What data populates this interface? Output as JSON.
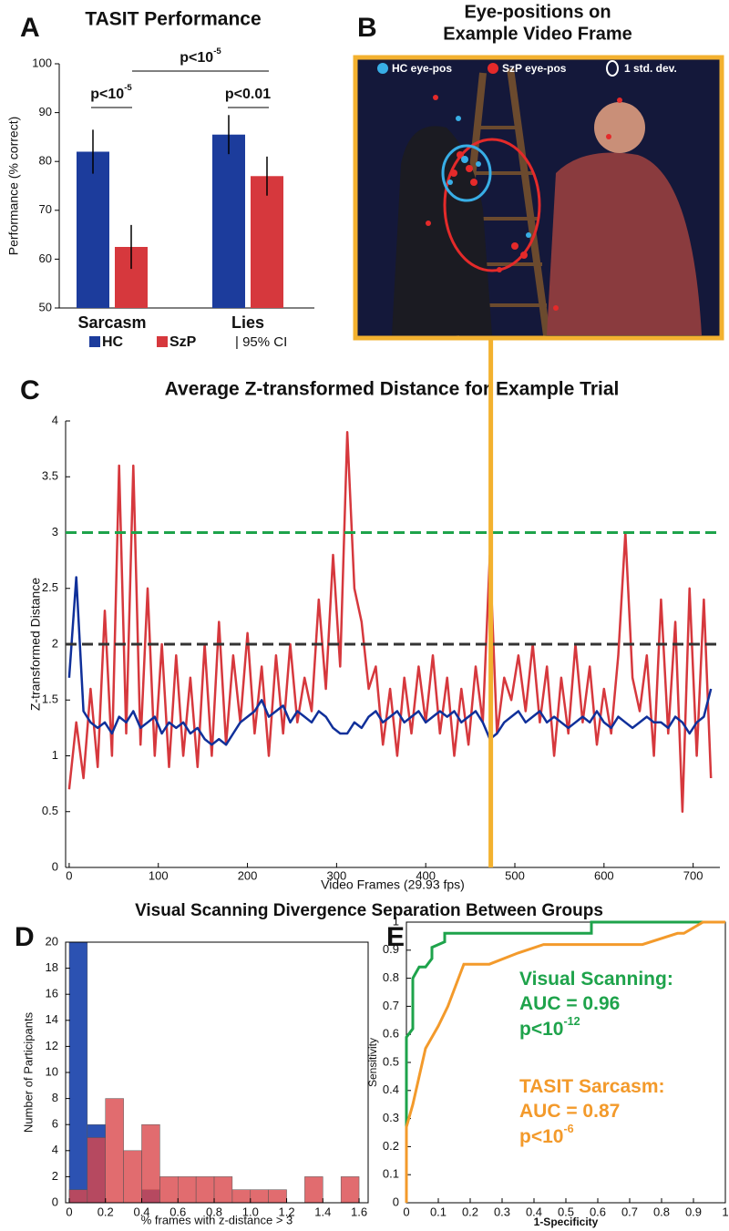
{
  "panel_labels": [
    "A",
    "B",
    "C",
    "D",
    "E"
  ],
  "image_panel": {
    "title": [
      "Eye-positions on",
      "Example Video Frame"
    ],
    "legend": [
      "HC eye-pos",
      "SzP eye-pos",
      "1 std. dev."
    ]
  },
  "chart_data": [
    {
      "type": "bar",
      "title": "TASIT Performance",
      "y_label": "Performance (% correct)",
      "categories": [
        "Sarcasm",
        "Lies"
      ],
      "series": [
        {
          "name": "HC",
          "color": "#1c3c9c",
          "values": [
            82,
            85.5
          ],
          "errors": [
            4.5,
            4
          ]
        },
        {
          "name": "SzP",
          "color": "#d6383d",
          "values": [
            62.5,
            77
          ],
          "errors": [
            4.5,
            4
          ]
        }
      ],
      "error_bar_label": "| 95% CI",
      "ylim": [
        50,
        100
      ],
      "yticks": [
        50,
        60,
        70,
        80,
        90,
        100
      ],
      "annotations": [
        {
          "text": "p<10",
          "sup": "-5"
        },
        {
          "text": "p<10",
          "sup": "-5"
        },
        {
          "text": "p<0.01"
        }
      ]
    },
    {
      "type": "line",
      "title": "Average Z-transformed Distance for Example Trial",
      "x_label": "Video Frames (29.93 fps)",
      "y_label": "Z-transformed Distance",
      "x": [
        0,
        8,
        16,
        24,
        32,
        40,
        48,
        56,
        64,
        72,
        80,
        88,
        96,
        104,
        112,
        120,
        128,
        136,
        144,
        152,
        160,
        168,
        176,
        184,
        192,
        200,
        208,
        216,
        224,
        232,
        240,
        248,
        256,
        264,
        272,
        280,
        288,
        296,
        304,
        312,
        320,
        328,
        336,
        344,
        352,
        360,
        368,
        376,
        384,
        392,
        400,
        408,
        416,
        424,
        432,
        440,
        448,
        456,
        464,
        472,
        480,
        488,
        496,
        504,
        512,
        520,
        528,
        536,
        544,
        552,
        560,
        568,
        576,
        584,
        592,
        600,
        608,
        616,
        624,
        632,
        640,
        648,
        656,
        664,
        672,
        680,
        688,
        696,
        704,
        712,
        720
      ],
      "series": [
        {
          "color": "#d6383d",
          "values": [
            0.7,
            1.3,
            0.8,
            1.6,
            0.9,
            2.3,
            1.0,
            3.6,
            1.2,
            3.6,
            1.1,
            2.5,
            1.0,
            2.0,
            0.9,
            1.9,
            1.0,
            1.7,
            0.9,
            2.0,
            1.0,
            2.2,
            1.1,
            1.9,
            1.3,
            2.1,
            1.2,
            1.8,
            1.0,
            1.9,
            1.2,
            2.0,
            1.3,
            1.7,
            1.4,
            2.4,
            1.6,
            2.8,
            1.8,
            3.9,
            2.5,
            2.2,
            1.6,
            1.8,
            1.1,
            1.6,
            1.0,
            1.7,
            1.2,
            1.8,
            1.3,
            1.9,
            1.2,
            1.7,
            1.0,
            1.6,
            1.1,
            1.8,
            1.3,
            2.8,
            1.2,
            1.7,
            1.5,
            1.9,
            1.4,
            2.0,
            1.3,
            1.8,
            1.0,
            1.7,
            1.2,
            2.0,
            1.3,
            1.8,
            1.1,
            1.6,
            1.2,
            1.9,
            3.0,
            1.7,
            1.4,
            1.9,
            1.0,
            2.4,
            1.2,
            2.2,
            0.5,
            2.5,
            1.0,
            2.4,
            0.8
          ]
        },
        {
          "color": "#10309a",
          "values": [
            1.7,
            2.6,
            1.4,
            1.3,
            1.25,
            1.3,
            1.2,
            1.35,
            1.3,
            1.4,
            1.25,
            1.3,
            1.35,
            1.2,
            1.3,
            1.25,
            1.3,
            1.2,
            1.25,
            1.15,
            1.1,
            1.15,
            1.1,
            1.2,
            1.3,
            1.35,
            1.4,
            1.5,
            1.35,
            1.4,
            1.45,
            1.3,
            1.4,
            1.35,
            1.3,
            1.4,
            1.35,
            1.25,
            1.2,
            1.2,
            1.3,
            1.25,
            1.35,
            1.4,
            1.3,
            1.35,
            1.4,
            1.3,
            1.35,
            1.4,
            1.3,
            1.35,
            1.4,
            1.35,
            1.4,
            1.3,
            1.35,
            1.4,
            1.3,
            1.15,
            1.2,
            1.3,
            1.35,
            1.4,
            1.3,
            1.35,
            1.4,
            1.3,
            1.35,
            1.3,
            1.25,
            1.3,
            1.35,
            1.3,
            1.4,
            1.3,
            1.25,
            1.35,
            1.3,
            1.25,
            1.3,
            1.35,
            1.3,
            1.3,
            1.25,
            1.35,
            1.3,
            1.2,
            1.3,
            1.35,
            1.6
          ]
        }
      ],
      "xlim": [
        -4,
        730
      ],
      "xticks": [
        0,
        100,
        200,
        300,
        400,
        500,
        600,
        700
      ],
      "ylim": [
        0,
        4
      ],
      "yticks": [
        0,
        0.5,
        1,
        1.5,
        2,
        2.5,
        3,
        3.5,
        4
      ],
      "reference_lines": [
        {
          "value": 3,
          "color": "#1ea34b"
        },
        {
          "value": 2,
          "color": "#333333"
        }
      ],
      "marker_x": 473,
      "marker_color": "#f3b12f"
    },
    {
      "type": "histogram",
      "title": "Visual Scanning Divergence Separation Between Groups",
      "x_label": "% frames with z-distance > 3",
      "y_label": "Number of Participants",
      "bins": [
        0,
        0.1,
        0.2,
        0.3,
        0.4,
        0.5,
        0.6,
        0.7,
        0.8,
        0.9,
        1.0,
        1.1,
        1.2,
        1.3,
        1.4,
        1.5,
        1.6
      ],
      "series": [
        {
          "color": "#2c52b2",
          "values": [
            20,
            6,
            0,
            0,
            1,
            0,
            0,
            0,
            0,
            0,
            0,
            0,
            0,
            0,
            0,
            0
          ]
        },
        {
          "color": "#d9474b",
          "values": [
            1,
            5,
            8,
            4,
            6,
            2,
            2,
            2,
            2,
            1,
            1,
            1,
            0,
            2,
            0,
            2
          ]
        }
      ],
      "xlim": [
        -0.02,
        1.65
      ],
      "xticks": [
        0,
        0.2,
        0.4,
        0.6,
        0.8,
        {
          "value": 1,
          "label": "1.0"
        },
        1.2,
        1.4,
        1.6
      ],
      "ylim": [
        0,
        20
      ],
      "yticks": [
        0,
        2,
        4,
        6,
        8,
        10,
        12,
        14,
        16,
        18,
        20
      ]
    },
    {
      "type": "line",
      "x_label": "1-Specificity",
      "y_label": "Sensitivity",
      "series": [
        {
          "color": "#1ea34b",
          "x": [
            0,
            0,
            0.02,
            0.02,
            0.04,
            0.06,
            0.08,
            0.08,
            0.12,
            0.12,
            0.58,
            0.58,
            1
          ],
          "values": [
            0,
            0.59,
            0.62,
            0.8,
            0.84,
            0.84,
            0.87,
            0.91,
            0.93,
            0.96,
            0.96,
            1,
            1
          ]
        },
        {
          "color": "#f39a2b",
          "x": [
            0,
            0,
            0.02,
            0.06,
            0.1,
            0.13,
            0.18,
            0.26,
            0.35,
            0.43,
            0.58,
            0.74,
            0.85,
            0.87,
            0.93,
            1
          ],
          "values": [
            0,
            0.27,
            0.35,
            0.55,
            0.63,
            0.7,
            0.85,
            0.85,
            0.89,
            0.92,
            0.92,
            0.92,
            0.96,
            0.96,
            1,
            1
          ]
        }
      ],
      "xlim": [
        0,
        1
      ],
      "xticks": [
        0,
        0.1,
        0.2,
        0.3,
        0.4,
        0.5,
        0.6,
        0.7,
        0.8,
        0.9,
        1
      ],
      "ylim": [
        0,
        1
      ],
      "yticks": [
        0,
        0.1,
        0.2,
        0.3,
        0.4,
        0.5,
        0.6,
        0.7,
        0.8,
        0.9,
        1
      ],
      "annotations": [
        {
          "text": "Visual Scanning:",
          "color": "#1ea34b"
        },
        {
          "text": "AUC = 0.96",
          "color": "#1ea34b"
        },
        {
          "text": "p<10",
          "sup": "-12",
          "color": "#1ea34b"
        },
        {
          "text": "TASIT Sarcasm:",
          "color": "#f39a2b"
        },
        {
          "text": "AUC = 0.87",
          "color": "#f39a2b"
        },
        {
          "text": "p<10",
          "sup": "-6",
          "color": "#f39a2b"
        }
      ]
    }
  ]
}
